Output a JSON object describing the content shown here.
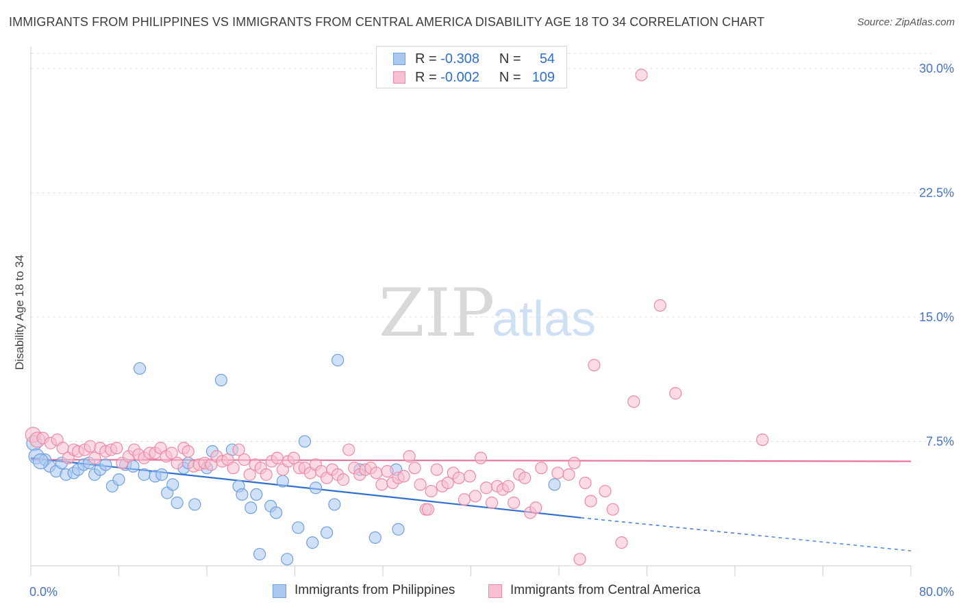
{
  "title": "IMMIGRANTS FROM PHILIPPINES VS IMMIGRANTS FROM CENTRAL AMERICA DISABILITY AGE 18 TO 34 CORRELATION CHART",
  "source": "Source: ZipAtlas.com",
  "watermark": {
    "zip": "ZIP",
    "atlas": "atlas"
  },
  "legend": {
    "r_label": "R =",
    "n_label": "N =",
    "rows": [
      {
        "series": "Immigrants from Philippines",
        "r": "-0.308",
        "n": "54",
        "color": "#aac8f0",
        "border": "#6f9fe0"
      },
      {
        "series": "Immigrants from Central America",
        "r": "-0.002",
        "n": "109",
        "color": "#f8c0d0",
        "border": "#ec8aa6"
      }
    ]
  },
  "chart_data": {
    "type": "scatter",
    "title": "IMMIGRANTS FROM PHILIPPINES VS IMMIGRANTS FROM CENTRAL AMERICA DISABILITY AGE 18 TO 34 CORRELATION CHART",
    "xlabel": "",
    "ylabel": "Disability Age 18 to 34",
    "xlim": [
      0,
      80
    ],
    "ylim": [
      0,
      30.9
    ],
    "x_tick_labels": [
      "0.0%",
      "80.0%"
    ],
    "y_ticks": [
      7.5,
      15.0,
      22.5,
      30.0
    ],
    "y_tick_labels": [
      "7.5%",
      "15.0%",
      "22.5%",
      "30.0%"
    ],
    "grid": true,
    "legend_position": "top-center",
    "series": [
      {
        "name": "Immigrants from Philippines",
        "color": "#6f9fe0",
        "fill": "#aac8f0",
        "trend": {
          "x": [
            0,
            50
          ],
          "y": [
            6.5,
            2.9
          ],
          "dashed_to": [
            80,
            0.9
          ],
          "color": "#2e6fd1"
        },
        "points": [
          [
            0.3,
            7.4
          ],
          [
            0.5,
            6.6
          ],
          [
            1.3,
            6.4
          ],
          [
            1.7,
            6.0
          ],
          [
            2.3,
            5.7
          ],
          [
            2.8,
            6.2
          ],
          [
            3.2,
            5.5
          ],
          [
            3.9,
            5.6
          ],
          [
            4.3,
            5.8
          ],
          [
            4.8,
            6.1
          ],
          [
            5.3,
            6.2
          ],
          [
            5.8,
            5.5
          ],
          [
            6.3,
            5.8
          ],
          [
            6.8,
            6.1
          ],
          [
            7.4,
            4.8
          ],
          [
            8.0,
            5.2
          ],
          [
            8.6,
            6.1
          ],
          [
            9.3,
            6.0
          ],
          [
            9.9,
            11.9
          ],
          [
            10.3,
            5.5
          ],
          [
            11.3,
            5.4
          ],
          [
            11.9,
            5.5
          ],
          [
            12.4,
            4.4
          ],
          [
            12.9,
            4.9
          ],
          [
            13.3,
            3.8
          ],
          [
            13.9,
            5.9
          ],
          [
            14.3,
            6.2
          ],
          [
            14.9,
            3.7
          ],
          [
            16.0,
            5.9
          ],
          [
            16.5,
            6.9
          ],
          [
            17.3,
            11.2
          ],
          [
            18.3,
            7.0
          ],
          [
            18.9,
            4.8
          ],
          [
            19.2,
            4.3
          ],
          [
            20.0,
            3.5
          ],
          [
            20.5,
            4.3
          ],
          [
            20.8,
            0.7
          ],
          [
            21.8,
            3.6
          ],
          [
            22.3,
            3.2
          ],
          [
            22.9,
            5.1
          ],
          [
            23.3,
            0.4
          ],
          [
            24.3,
            2.3
          ],
          [
            24.9,
            7.5
          ],
          [
            25.6,
            1.4
          ],
          [
            25.9,
            4.7
          ],
          [
            26.9,
            2.0
          ],
          [
            27.6,
            3.7
          ],
          [
            27.9,
            12.4
          ],
          [
            29.9,
            5.8
          ],
          [
            31.3,
            1.7
          ],
          [
            33.2,
            5.8
          ],
          [
            33.4,
            2.2
          ],
          [
            47.6,
            4.9
          ],
          [
            0.9,
            6.3
          ]
        ]
      },
      {
        "name": "Immigrants from Central America",
        "color": "#ec8aa6",
        "fill": "#f8c0d0",
        "trend": {
          "x": [
            0,
            80
          ],
          "y": [
            6.4,
            6.3
          ],
          "color": "#e8739a"
        },
        "points": [
          [
            0.2,
            7.9
          ],
          [
            0.6,
            7.6
          ],
          [
            1.1,
            7.7
          ],
          [
            1.8,
            7.4
          ],
          [
            2.4,
            7.6
          ],
          [
            2.9,
            7.1
          ],
          [
            3.4,
            6.5
          ],
          [
            3.9,
            7.0
          ],
          [
            4.3,
            6.9
          ],
          [
            4.9,
            7.0
          ],
          [
            5.4,
            7.2
          ],
          [
            5.8,
            6.5
          ],
          [
            6.3,
            7.1
          ],
          [
            6.8,
            6.9
          ],
          [
            7.3,
            7.0
          ],
          [
            7.8,
            7.1
          ],
          [
            8.3,
            6.2
          ],
          [
            8.9,
            6.6
          ],
          [
            9.4,
            7.0
          ],
          [
            9.8,
            6.7
          ],
          [
            10.3,
            6.5
          ],
          [
            10.8,
            6.8
          ],
          [
            11.3,
            6.8
          ],
          [
            11.8,
            7.1
          ],
          [
            12.3,
            6.6
          ],
          [
            12.8,
            6.8
          ],
          [
            13.3,
            6.2
          ],
          [
            13.9,
            7.1
          ],
          [
            14.3,
            6.9
          ],
          [
            14.8,
            6.0
          ],
          [
            15.3,
            6.1
          ],
          [
            15.8,
            6.2
          ],
          [
            16.4,
            6.1
          ],
          [
            16.9,
            6.6
          ],
          [
            17.4,
            6.3
          ],
          [
            17.9,
            6.4
          ],
          [
            18.4,
            5.9
          ],
          [
            18.9,
            7.0
          ],
          [
            19.4,
            6.4
          ],
          [
            19.9,
            5.5
          ],
          [
            20.4,
            6.1
          ],
          [
            20.9,
            5.9
          ],
          [
            21.4,
            5.5
          ],
          [
            21.9,
            6.3
          ],
          [
            22.4,
            6.5
          ],
          [
            22.9,
            5.8
          ],
          [
            23.4,
            6.3
          ],
          [
            23.9,
            6.5
          ],
          [
            24.4,
            5.9
          ],
          [
            24.9,
            5.9
          ],
          [
            25.4,
            5.6
          ],
          [
            25.9,
            6.1
          ],
          [
            26.4,
            5.7
          ],
          [
            26.9,
            5.3
          ],
          [
            27.4,
            5.8
          ],
          [
            27.9,
            5.5
          ],
          [
            28.4,
            5.2
          ],
          [
            28.9,
            7.0
          ],
          [
            29.4,
            5.9
          ],
          [
            29.9,
            5.5
          ],
          [
            30.4,
            5.8
          ],
          [
            30.9,
            5.9
          ],
          [
            31.4,
            5.6
          ],
          [
            31.9,
            4.9
          ],
          [
            32.4,
            5.7
          ],
          [
            32.9,
            5.0
          ],
          [
            33.4,
            5.3
          ],
          [
            33.9,
            5.4
          ],
          [
            34.4,
            6.6
          ],
          [
            34.9,
            5.9
          ],
          [
            35.4,
            4.9
          ],
          [
            35.9,
            3.4
          ],
          [
            36.4,
            4.5
          ],
          [
            36.9,
            5.8
          ],
          [
            37.4,
            4.8
          ],
          [
            37.9,
            5.0
          ],
          [
            38.4,
            5.6
          ],
          [
            38.9,
            5.3
          ],
          [
            39.4,
            4.0
          ],
          [
            39.9,
            5.4
          ],
          [
            40.4,
            4.2
          ],
          [
            40.9,
            6.5
          ],
          [
            41.4,
            4.7
          ],
          [
            41.9,
            3.8
          ],
          [
            42.4,
            4.8
          ],
          [
            42.9,
            4.6
          ],
          [
            43.4,
            4.8
          ],
          [
            43.9,
            3.8
          ],
          [
            44.4,
            5.5
          ],
          [
            44.9,
            5.3
          ],
          [
            45.4,
            3.2
          ],
          [
            45.9,
            3.5
          ],
          [
            46.4,
            5.9
          ],
          [
            47.9,
            5.6
          ],
          [
            48.9,
            5.5
          ],
          [
            49.4,
            6.2
          ],
          [
            49.9,
            0.4
          ],
          [
            50.4,
            5.0
          ],
          [
            50.9,
            3.9
          ],
          [
            51.2,
            12.1
          ],
          [
            52.2,
            4.5
          ],
          [
            52.9,
            3.4
          ],
          [
            53.7,
            1.4
          ],
          [
            54.8,
            9.9
          ],
          [
            55.5,
            29.6
          ],
          [
            57.2,
            15.7
          ],
          [
            58.6,
            10.4
          ],
          [
            66.5,
            7.6
          ],
          [
            36.1,
            3.4
          ]
        ]
      }
    ]
  },
  "bottom_legend": [
    {
      "label": "Immigrants from Philippines"
    },
    {
      "label": "Immigrants from Central America"
    }
  ]
}
